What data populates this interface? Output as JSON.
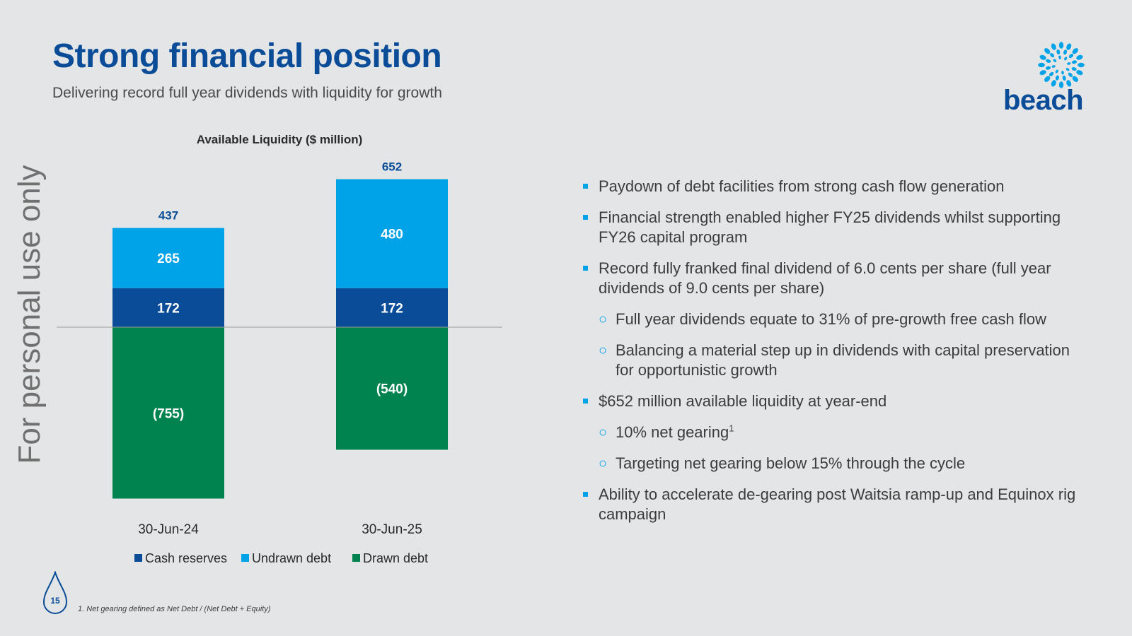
{
  "header": {
    "title": "Strong financial position",
    "subtitle": "Delivering record full year dividends with liquidity for growth"
  },
  "logo": {
    "text": "beach",
    "icon": "beach-droplet-swirl-icon"
  },
  "watermark": "For personal use only",
  "colors": {
    "title": "#0a4c97",
    "cash_reserves": "#0a4c97",
    "undrawn_debt": "#00a3e8",
    "drawn_debt": "#00834f",
    "bullet": "#00a3e8"
  },
  "chart_data": {
    "type": "bar",
    "stacked": true,
    "title": "Available Liquidity ($ million)",
    "categories": [
      "30-Jun-24",
      "30-Jun-25"
    ],
    "series": [
      {
        "name": "Cash reserves",
        "values": [
          172,
          172
        ],
        "labels": [
          "172",
          "172"
        ]
      },
      {
        "name": "Undrawn debt",
        "values": [
          265,
          480
        ],
        "labels": [
          "265",
          "480"
        ]
      },
      {
        "name": "Drawn debt",
        "values": [
          -755,
          -540
        ],
        "labels": [
          "(755)",
          "(540)"
        ]
      }
    ],
    "totals": [
      437,
      652
    ],
    "total_labels": [
      "437",
      "652"
    ],
    "legend_position": "bottom",
    "grid": false,
    "ylim": [
      -755,
      652
    ]
  },
  "bullets": [
    {
      "level": 1,
      "text": "Paydown of debt facilities from strong cash flow generation"
    },
    {
      "level": 1,
      "text": "Financial strength enabled higher FY25 dividends whilst supporting FY26 capital program"
    },
    {
      "level": 1,
      "text": "Record fully franked final dividend of 6.0 cents per share (full year dividends of 9.0 cents per share)"
    },
    {
      "level": 2,
      "text": "Full year dividends equate to 31% of pre-growth free cash flow"
    },
    {
      "level": 2,
      "text": "Balancing a material step up in dividends with capital preservation for opportunistic growth"
    },
    {
      "level": 1,
      "text": "$652 million available liquidity at year-end"
    },
    {
      "level": 2,
      "text": "10% net gearing",
      "sup": "1"
    },
    {
      "level": 2,
      "text": "Targeting net gearing below 15% through the cycle"
    },
    {
      "level": 1,
      "text": "Ability to accelerate de-gearing post Waitsia ramp-up and Equinox rig campaign"
    }
  ],
  "footer": {
    "page_number": "15",
    "footnote": "1. Net gearing defined as Net Debt / (Net Debt + Equity)"
  }
}
